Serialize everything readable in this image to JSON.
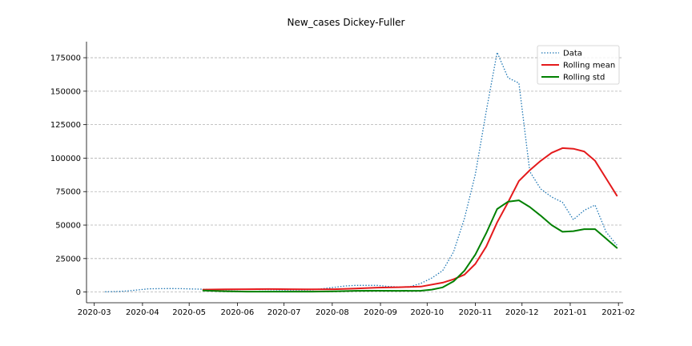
{
  "chart_data": {
    "type": "line",
    "title": "New_cases Dickey-Fuller",
    "xlabel": "",
    "ylabel": "",
    "x_axis": {
      "type": "date",
      "range": [
        "2020-02-25",
        "2021-02-04"
      ],
      "ticks": [
        "2020-03-01",
        "2020-04-01",
        "2020-05-01",
        "2020-06-01",
        "2020-07-01",
        "2020-08-01",
        "2020-09-01",
        "2020-10-01",
        "2020-11-01",
        "2020-12-01",
        "2021-01-01",
        "2021-02-01"
      ],
      "tick_labels": [
        "2020-03",
        "2020-04",
        "2020-05",
        "2020-06",
        "2020-07",
        "2020-08",
        "2020-09",
        "2020-10",
        "2020-11",
        "2020-12",
        "2021-01",
        "2021-02"
      ]
    },
    "y_axis": {
      "range": [
        -8000,
        187000
      ],
      "ticks": [
        0,
        25000,
        50000,
        75000,
        100000,
        125000,
        150000,
        175000
      ],
      "tick_labels": [
        "0",
        "25000",
        "50000",
        "75000",
        "100000",
        "125000",
        "150000",
        "175000"
      ]
    },
    "grid": "horizontal-dashed",
    "legend_position": "top-right",
    "series": [
      {
        "name": "Data",
        "color": "#1f77b4",
        "style": "dotted",
        "points": [
          [
            "2020-03-08",
            200
          ],
          [
            "2020-03-15",
            400
          ],
          [
            "2020-03-22",
            800
          ],
          [
            "2020-03-29",
            1600
          ],
          [
            "2020-04-05",
            2400
          ],
          [
            "2020-04-12",
            2500
          ],
          [
            "2020-04-19",
            2600
          ],
          [
            "2020-04-26",
            2500
          ],
          [
            "2020-05-03",
            2300
          ],
          [
            "2020-05-10",
            2100
          ],
          [
            "2020-05-17",
            1900
          ],
          [
            "2020-05-24",
            1700
          ],
          [
            "2020-05-31",
            1800
          ],
          [
            "2020-06-07",
            2000
          ],
          [
            "2020-06-14",
            1900
          ],
          [
            "2020-06-21",
            1800
          ],
          [
            "2020-06-28",
            1600
          ],
          [
            "2020-07-05",
            1500
          ],
          [
            "2020-07-12",
            1500
          ],
          [
            "2020-07-19",
            1600
          ],
          [
            "2020-07-26",
            2500
          ],
          [
            "2020-08-02",
            3500
          ],
          [
            "2020-08-09",
            4500
          ],
          [
            "2020-08-16",
            5000
          ],
          [
            "2020-08-23",
            5000
          ],
          [
            "2020-08-30",
            5000
          ],
          [
            "2020-09-06",
            4200
          ],
          [
            "2020-09-13",
            3800
          ],
          [
            "2020-09-20",
            4000
          ],
          [
            "2020-09-27",
            6500
          ],
          [
            "2020-10-04",
            10500
          ],
          [
            "2020-10-11",
            16000
          ],
          [
            "2020-10-18",
            30000
          ],
          [
            "2020-10-25",
            55000
          ],
          [
            "2020-11-01",
            88000
          ],
          [
            "2020-11-08",
            135000
          ],
          [
            "2020-11-15",
            179000
          ],
          [
            "2020-11-22",
            160000
          ],
          [
            "2020-11-29",
            156000
          ],
          [
            "2020-12-06",
            90000
          ],
          [
            "2020-12-13",
            77000
          ],
          [
            "2020-12-20",
            71000
          ],
          [
            "2020-12-27",
            67000
          ],
          [
            "2021-01-03",
            54000
          ],
          [
            "2021-01-10",
            61000
          ],
          [
            "2021-01-17",
            65000
          ],
          [
            "2021-01-24",
            45000
          ],
          [
            "2021-01-31",
            35000
          ]
        ]
      },
      {
        "name": "Rolling mean",
        "color": "#e41a1c",
        "style": "solid",
        "points": [
          [
            "2020-05-10",
            1800
          ],
          [
            "2020-05-24",
            2000
          ],
          [
            "2020-06-07",
            2100
          ],
          [
            "2020-06-21",
            2200
          ],
          [
            "2020-07-05",
            2100
          ],
          [
            "2020-07-19",
            2000
          ],
          [
            "2020-08-02",
            2100
          ],
          [
            "2020-08-16",
            2600
          ],
          [
            "2020-08-30",
            3300
          ],
          [
            "2020-09-13",
            3600
          ],
          [
            "2020-09-27",
            4100
          ],
          [
            "2020-10-11",
            7000
          ],
          [
            "2020-10-18",
            9500
          ],
          [
            "2020-10-25",
            13000
          ],
          [
            "2020-11-01",
            21000
          ],
          [
            "2020-11-08",
            34000
          ],
          [
            "2020-11-15",
            52000
          ],
          [
            "2020-11-22",
            67000
          ],
          [
            "2020-11-29",
            83000
          ],
          [
            "2020-12-06",
            91000
          ],
          [
            "2020-12-13",
            98000
          ],
          [
            "2020-12-20",
            104000
          ],
          [
            "2020-12-27",
            107500
          ],
          [
            "2021-01-03",
            107000
          ],
          [
            "2021-01-10",
            105000
          ],
          [
            "2021-01-17",
            98000
          ],
          [
            "2021-01-24",
            85000
          ],
          [
            "2021-01-31",
            72000
          ]
        ]
      },
      {
        "name": "Rolling std",
        "color": "#008000",
        "style": "solid",
        "points": [
          [
            "2020-05-10",
            1100
          ],
          [
            "2020-05-24",
            600
          ],
          [
            "2020-06-07",
            300
          ],
          [
            "2020-06-21",
            300
          ],
          [
            "2020-07-05",
            300
          ],
          [
            "2020-07-19",
            300
          ],
          [
            "2020-08-02",
            500
          ],
          [
            "2020-08-16",
            900
          ],
          [
            "2020-08-30",
            1000
          ],
          [
            "2020-09-13",
            900
          ],
          [
            "2020-09-27",
            1000
          ],
          [
            "2020-10-04",
            1800
          ],
          [
            "2020-10-11",
            3500
          ],
          [
            "2020-10-18",
            8000
          ],
          [
            "2020-10-25",
            16000
          ],
          [
            "2020-11-01",
            28000
          ],
          [
            "2020-11-08",
            44000
          ],
          [
            "2020-11-15",
            62000
          ],
          [
            "2020-11-22",
            67500
          ],
          [
            "2020-11-29",
            68500
          ],
          [
            "2020-12-06",
            63500
          ],
          [
            "2020-12-13",
            57000
          ],
          [
            "2020-12-20",
            50000
          ],
          [
            "2020-12-27",
            45000
          ],
          [
            "2021-01-03",
            45500
          ],
          [
            "2021-01-10",
            47000
          ],
          [
            "2021-01-17",
            47000
          ],
          [
            "2021-01-24",
            40000
          ],
          [
            "2021-01-31",
            33000
          ]
        ]
      }
    ]
  }
}
